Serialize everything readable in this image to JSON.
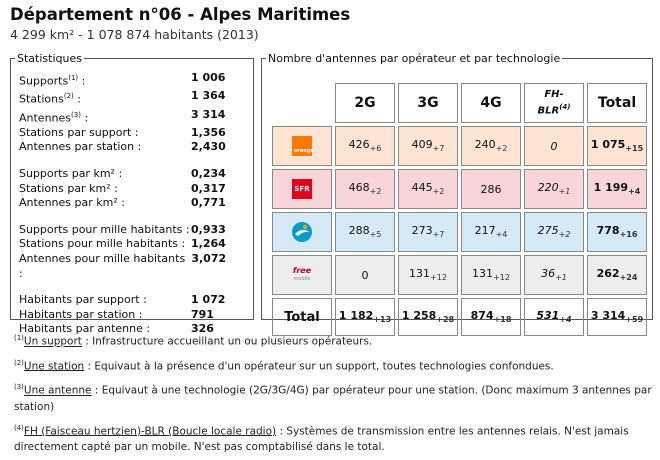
{
  "header": {
    "title": "Département n°06 - Alpes Maritimes",
    "subtitle": "4 299 km² - 1 078 874 habitants (2013)"
  },
  "stats": {
    "legend": "Statistiques",
    "groups": [
      [
        {
          "label": "Supports",
          "sup": "(1)",
          "suffix": " :",
          "value": "1 006"
        },
        {
          "label": "Stations",
          "sup": "(2)",
          "suffix": " :",
          "value": "1 364"
        },
        {
          "label": "Antennes",
          "sup": "(3)",
          "suffix": " :",
          "value": "3 314"
        },
        {
          "label": "Stations par support :",
          "sup": "",
          "suffix": "",
          "value": "1,356"
        },
        {
          "label": "Antennes par station :",
          "sup": "",
          "suffix": "",
          "value": "2,430"
        }
      ],
      [
        {
          "label": "Supports par km² :",
          "sup": "",
          "suffix": "",
          "value": "0,234"
        },
        {
          "label": "Stations par km² :",
          "sup": "",
          "suffix": "",
          "value": "0,317"
        },
        {
          "label": "Antennes par km² :",
          "sup": "",
          "suffix": "",
          "value": "0,771"
        }
      ],
      [
        {
          "label": "Supports pour mille habitants :",
          "sup": "",
          "suffix": "",
          "value": "0,933"
        },
        {
          "label": "Stations pour mille habitants :",
          "sup": "",
          "suffix": "",
          "value": "1,264"
        },
        {
          "label": "Antennes pour mille habitants :",
          "sup": "",
          "suffix": "",
          "value": "3,072"
        }
      ],
      [
        {
          "label": "Habitants par support :",
          "sup": "",
          "suffix": "",
          "value": "1 072"
        },
        {
          "label": "Habitants par station :",
          "sup": "",
          "suffix": "",
          "value": "791"
        },
        {
          "label": "Habitants par antenne :",
          "sup": "",
          "suffix": "",
          "value": "326"
        }
      ]
    ]
  },
  "antenna_table": {
    "legend": "Nombre d'antennes par opérateur et par technologie",
    "columns": [
      "2G",
      "3G",
      "4G",
      "FH-BLR",
      "Total"
    ],
    "fh_sup": "(4)",
    "rows": [
      {
        "operator": "orange",
        "logo_text": "orange",
        "bg": "#fde4d3",
        "cells": [
          {
            "v": "426",
            "d": "+6"
          },
          {
            "v": "409",
            "d": "+7"
          },
          {
            "v": "240",
            "d": "+2"
          },
          {
            "v": "0",
            "d": ""
          },
          {
            "v": "1 075",
            "d": "+15"
          }
        ]
      },
      {
        "operator": "sfr",
        "logo_text": "SFR",
        "bg": "#f8d5d8",
        "cells": [
          {
            "v": "468",
            "d": "+2"
          },
          {
            "v": "445",
            "d": "+2"
          },
          {
            "v": "286",
            "d": ""
          },
          {
            "v": "220",
            "d": "+1"
          },
          {
            "v": "1 199",
            "d": "+4"
          }
        ]
      },
      {
        "operator": "bouygues",
        "logo_text": "",
        "bg": "#d5eaf6",
        "cells": [
          {
            "v": "288",
            "d": "+5"
          },
          {
            "v": "273",
            "d": "+7"
          },
          {
            "v": "217",
            "d": "+4"
          },
          {
            "v": "275",
            "d": "+2"
          },
          {
            "v": "778",
            "d": "+16"
          }
        ]
      },
      {
        "operator": "free",
        "logo_text": "free",
        "logo_sub": "mobile",
        "bg": "#ededed",
        "cells": [
          {
            "v": "0",
            "d": ""
          },
          {
            "v": "131",
            "d": "+12"
          },
          {
            "v": "131",
            "d": "+12"
          },
          {
            "v": "36",
            "d": "+1"
          },
          {
            "v": "262",
            "d": "+24"
          }
        ]
      }
    ],
    "total_row": {
      "label": "Total",
      "cells": [
        {
          "v": "1 182",
          "d": "+13"
        },
        {
          "v": "1 258",
          "d": "+28"
        },
        {
          "v": "874",
          "d": "+18"
        },
        {
          "v": "531",
          "d": "+4"
        },
        {
          "v": "3 314",
          "d": "+59"
        }
      ]
    }
  },
  "footnotes": [
    {
      "sup": "(1)",
      "term": "Un support",
      "text": " : Infrastructure accueillant un ou plusieurs opérateurs."
    },
    {
      "sup": "(2)",
      "term": "Une station",
      "text": " : Equivaut à la présence d'un opérateur sur un support, toutes technologies confondues."
    },
    {
      "sup": "(3)",
      "term": "Une antenne",
      "text": " : Equivaut à une technologie (2G/3G/4G) par opérateur pour une station. (Donc maximum 3 antennes par station)"
    },
    {
      "sup": "(4)",
      "term": "FH (Faisceau hertzien)-BLR (Boucle locale radio)",
      "text": " : Systèmes de transmission entre les antennes relais. N'est jamais directement capté par un mobile. N'est pas comptabilisé dans le total."
    }
  ]
}
